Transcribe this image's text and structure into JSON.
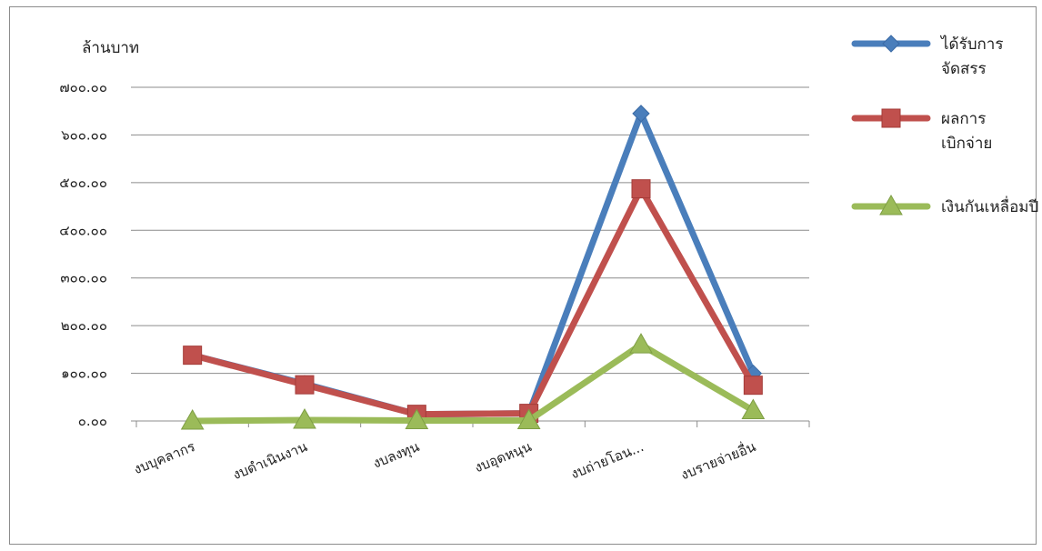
{
  "chart_data": {
    "type": "line",
    "ylabel": "ล้านบาท",
    "ylim": [
      0,
      700
    ],
    "ytick_step": 100,
    "ytick_labels": [
      "๐.๐๐",
      "๑๐๐.๐๐",
      "๒๐๐.๐๐",
      "๓๐๐.๐๐",
      "๔๐๐.๐๐",
      "๕๐๐.๐๐",
      "๖๐๐.๐๐",
      "๗๐๐.๐๐"
    ],
    "grid": true,
    "legend_position": "right",
    "categories": [
      "งบบุคลากร",
      "งบดำเนินงาน",
      "งบลงทุน",
      "งบอุดหนุน",
      "งบถ่ายโอน...",
      "งบรายจ่ายอื่น"
    ],
    "series": [
      {
        "name": [
          "ได้รับการ",
          "จัดสรร"
        ],
        "color": "#4a7ebb",
        "marker": "diamond",
        "values": [
          138,
          78,
          14,
          16,
          645,
          100
        ]
      },
      {
        "name": [
          "ผลการ",
          "เบิกจ่าย"
        ],
        "color": "#c0504d",
        "marker": "square",
        "values": [
          138,
          76,
          14,
          16,
          487,
          75
        ]
      },
      {
        "name": [
          "เงินกันเหลื่อมปี"
        ],
        "color": "#9bbb59",
        "marker": "triangle",
        "values": [
          0,
          2,
          1,
          1,
          160,
          22
        ]
      }
    ]
  }
}
